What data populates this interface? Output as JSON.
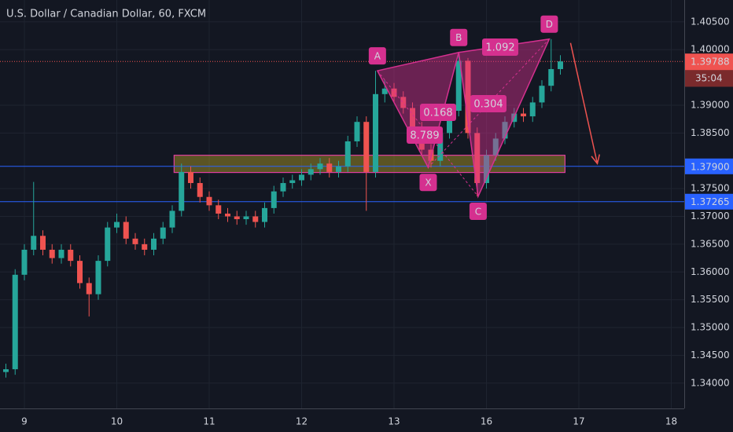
{
  "chart_data": {
    "type": "candlestick",
    "title": "U.S. Dollar / Canadian Dollar, 60, FXCM",
    "x": [
      -0.2,
      -0.1,
      0.0,
      0.1,
      0.2,
      0.3,
      0.4,
      0.5,
      0.6,
      0.7,
      0.8,
      0.9,
      1.0,
      1.1,
      1.2,
      1.3,
      1.4,
      1.5,
      1.6,
      1.7,
      1.8,
      1.9,
      2.0,
      2.1,
      2.2,
      2.3,
      2.4,
      2.5,
      2.6,
      2.7,
      2.8,
      2.9,
      3.0,
      3.1,
      3.2,
      3.3,
      3.4,
      3.5,
      3.6,
      3.7,
      3.8,
      3.9,
      4.0,
      4.1,
      4.2,
      4.3,
      4.4,
      4.5,
      4.6,
      4.7,
      4.8,
      4.9,
      5.0,
      5.1,
      5.2,
      5.3,
      5.4,
      5.5,
      5.6,
      5.7,
      5.8
    ],
    "open": [
      1.342,
      1.3425,
      1.3595,
      1.364,
      1.3665,
      1.364,
      1.3625,
      1.364,
      1.362,
      1.358,
      1.356,
      1.362,
      1.368,
      1.369,
      1.366,
      1.365,
      1.364,
      1.366,
      1.368,
      1.371,
      1.378,
      1.376,
      1.3735,
      1.372,
      1.3705,
      1.37,
      1.3695,
      1.37,
      1.369,
      1.3715,
      1.3745,
      1.376,
      1.3765,
      1.3775,
      1.3785,
      1.3795,
      1.378,
      1.379,
      1.3835,
      1.387,
      1.378,
      1.392,
      1.393,
      1.3915,
      1.3895,
      1.386,
      1.382,
      1.38,
      1.385,
      1.389,
      1.398,
      1.385,
      1.376,
      1.381,
      1.384,
      1.387,
      1.3885,
      1.388,
      1.3905,
      1.3935,
      1.3965
    ],
    "high": [
      1.3435,
      1.3605,
      1.365,
      1.3762,
      1.3675,
      1.365,
      1.365,
      1.365,
      1.363,
      1.359,
      1.363,
      1.369,
      1.3705,
      1.37,
      1.367,
      1.366,
      1.367,
      1.369,
      1.372,
      1.3795,
      1.379,
      1.377,
      1.3745,
      1.373,
      1.3715,
      1.371,
      1.371,
      1.371,
      1.3725,
      1.3755,
      1.377,
      1.3775,
      1.3785,
      1.3795,
      1.3805,
      1.3805,
      1.38,
      1.3845,
      1.388,
      1.388,
      1.3962,
      1.3945,
      1.394,
      1.3925,
      1.3905,
      1.387,
      1.383,
      1.386,
      1.39,
      1.3995,
      1.3985,
      1.386,
      1.382,
      1.385,
      1.388,
      1.3895,
      1.3895,
      1.3915,
      1.3945,
      1.4019,
      1.399
    ],
    "low": [
      1.341,
      1.3415,
      1.3585,
      1.363,
      1.363,
      1.3615,
      1.3615,
      1.361,
      1.357,
      1.352,
      1.355,
      1.361,
      1.367,
      1.365,
      1.364,
      1.363,
      1.363,
      1.365,
      1.367,
      1.37,
      1.375,
      1.3725,
      1.371,
      1.3695,
      1.369,
      1.3685,
      1.3685,
      1.368,
      1.368,
      1.3705,
      1.3735,
      1.375,
      1.3755,
      1.3765,
      1.3775,
      1.377,
      1.377,
      1.378,
      1.3825,
      1.371,
      1.377,
      1.3905,
      1.3905,
      1.3885,
      1.385,
      1.381,
      1.3788,
      1.379,
      1.384,
      1.388,
      1.384,
      1.3736,
      1.375,
      1.38,
      1.383,
      1.386,
      1.387,
      1.387,
      1.3895,
      1.3925,
      1.3955
    ],
    "close": [
      1.3425,
      1.3595,
      1.364,
      1.3665,
      1.364,
      1.3625,
      1.364,
      1.362,
      1.358,
      1.356,
      1.362,
      1.368,
      1.369,
      1.366,
      1.365,
      1.364,
      1.366,
      1.368,
      1.371,
      1.378,
      1.376,
      1.3735,
      1.372,
      1.3705,
      1.37,
      1.3695,
      1.37,
      1.369,
      1.3715,
      1.3745,
      1.376,
      1.3765,
      1.3775,
      1.3785,
      1.3795,
      1.378,
      1.379,
      1.3835,
      1.387,
      1.378,
      1.392,
      1.393,
      1.3915,
      1.3895,
      1.386,
      1.382,
      1.38,
      1.385,
      1.389,
      1.398,
      1.385,
      1.376,
      1.381,
      1.384,
      1.387,
      1.3885,
      1.388,
      1.3905,
      1.3935,
      1.3965,
      1.39788
    ],
    "up_color": "#26a69a",
    "down_color": "#ef5350",
    "xlim": [
      -0.2638,
      7.1404
    ],
    "ylim": [
      1.33545,
      1.40893
    ],
    "xticks": [
      {
        "value": 0,
        "label": "9"
      },
      {
        "value": 1,
        "label": "10"
      },
      {
        "value": 2,
        "label": "11"
      },
      {
        "value": 3,
        "label": "12"
      },
      {
        "value": 4,
        "label": "13"
      },
      {
        "value": 5,
        "label": "16"
      },
      {
        "value": 6,
        "label": "17"
      },
      {
        "value": 7,
        "label": "18"
      }
    ],
    "yticks": [
      {
        "value": 1.405,
        "label": "1.40500"
      },
      {
        "value": 1.4,
        "label": "1.40000"
      },
      {
        "value": 1.39,
        "label": "1.39000"
      },
      {
        "value": 1.385,
        "label": "1.38500"
      },
      {
        "value": 1.375,
        "label": "1.37500"
      },
      {
        "value": 1.37,
        "label": "1.37000"
      },
      {
        "value": 1.365,
        "label": "1.36500"
      },
      {
        "value": 1.36,
        "label": "1.36000"
      },
      {
        "value": 1.355,
        "label": "1.35500"
      },
      {
        "value": 1.35,
        "label": "1.35000"
      },
      {
        "value": 1.345,
        "label": "1.34500"
      },
      {
        "value": 1.34,
        "label": "1.34000"
      }
    ],
    "grid": true,
    "levels": [
      {
        "value": 1.379,
        "label": "1.37900",
        "color": "#2962ff"
      },
      {
        "value": 1.37265,
        "label": "1.37265",
        "color": "#2962ff"
      }
    ],
    "last_price": {
      "value": 1.39788,
      "label": "1.39788",
      "color": "#ef5350",
      "countdown": "35:04"
    },
    "zone": {
      "x": [
        1.62,
        5.85
      ],
      "y": [
        1.3779,
        1.381
      ],
      "color": "#e040a0"
    },
    "pattern": {
      "color": "#d5308f",
      "points": [
        {
          "label": "X",
          "x": 4.37,
          "y": 1.3788
        },
        {
          "label": "A",
          "x": 3.82,
          "y": 1.3962
        },
        {
          "label": "B",
          "x": 4.7,
          "y": 1.3995
        },
        {
          "label": "C",
          "x": 4.91,
          "y": 1.3736
        },
        {
          "label": "D",
          "x": 5.68,
          "y": 1.4019
        }
      ],
      "ratios": [
        "0.168",
        "8.789",
        "0.304",
        "1.092"
      ]
    },
    "arrow": {
      "x": [
        5.91,
        6.2
      ],
      "y": [
        1.4012,
        1.3795
      ],
      "color": "#ef5350"
    }
  }
}
